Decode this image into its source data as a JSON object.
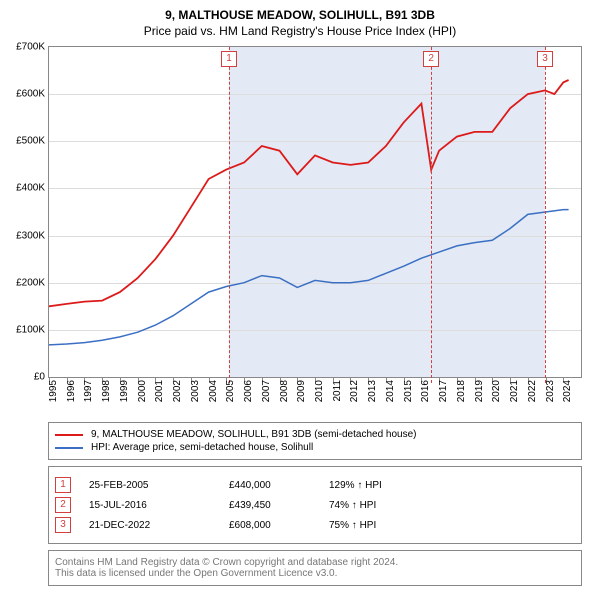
{
  "title": "9, MALTHOUSE MEADOW, SOLIHULL, B91 3DB",
  "subtitle": "Price paid vs. HM Land Registry's House Price Index (HPI)",
  "chart": {
    "type": "line",
    "background_color": "#ffffff",
    "shaded_band_color": "#e3eaf5",
    "grid_color": "#dcdcdc",
    "border_color": "#888888",
    "x": {
      "min": 1995,
      "max": 2025,
      "ticks": [
        1995,
        1996,
        1997,
        1998,
        1999,
        2000,
        2001,
        2002,
        2003,
        2004,
        2005,
        2006,
        2007,
        2008,
        2009,
        2010,
        2011,
        2012,
        2013,
        2014,
        2015,
        2016,
        2017,
        2018,
        2019,
        2020,
        2021,
        2022,
        2023,
        2024
      ]
    },
    "y": {
      "min": 0,
      "max": 700000,
      "ticks": [
        0,
        100000,
        200000,
        300000,
        400000,
        500000,
        600000,
        700000
      ],
      "labels": [
        "£0",
        "£100K",
        "£200K",
        "£300K",
        "£400K",
        "£500K",
        "£600K",
        "£700K"
      ]
    },
    "shaded_band": {
      "x_start": 2005.15,
      "x_end": 2022.97
    },
    "series": [
      {
        "name": "property",
        "label": "9, MALTHOUSE MEADOW, SOLIHULL, B91 3DB (semi-detached house)",
        "color": "#dd1a1a",
        "width": 1.8,
        "points": [
          [
            1995,
            150000
          ],
          [
            1996,
            155000
          ],
          [
            1997,
            160000
          ],
          [
            1998,
            162000
          ],
          [
            1999,
            180000
          ],
          [
            2000,
            210000
          ],
          [
            2001,
            250000
          ],
          [
            2002,
            300000
          ],
          [
            2003,
            360000
          ],
          [
            2004,
            420000
          ],
          [
            2005,
            440000
          ],
          [
            2006,
            455000
          ],
          [
            2007,
            490000
          ],
          [
            2008,
            480000
          ],
          [
            2009,
            430000
          ],
          [
            2010,
            470000
          ],
          [
            2011,
            455000
          ],
          [
            2012,
            450000
          ],
          [
            2013,
            455000
          ],
          [
            2014,
            490000
          ],
          [
            2015,
            540000
          ],
          [
            2016,
            580000
          ],
          [
            2016.55,
            439450
          ],
          [
            2017,
            480000
          ],
          [
            2018,
            510000
          ],
          [
            2019,
            520000
          ],
          [
            2020,
            520000
          ],
          [
            2021,
            570000
          ],
          [
            2022,
            600000
          ],
          [
            2022.97,
            608000
          ],
          [
            2023.5,
            600000
          ],
          [
            2024,
            625000
          ],
          [
            2024.3,
            630000
          ]
        ]
      },
      {
        "name": "hpi",
        "label": "HPI: Average price, semi-detached house, Solihull",
        "color": "#3b6fc4",
        "width": 1.5,
        "points": [
          [
            1995,
            68000
          ],
          [
            1996,
            70000
          ],
          [
            1997,
            73000
          ],
          [
            1998,
            78000
          ],
          [
            1999,
            85000
          ],
          [
            2000,
            95000
          ],
          [
            2001,
            110000
          ],
          [
            2002,
            130000
          ],
          [
            2003,
            155000
          ],
          [
            2004,
            180000
          ],
          [
            2005,
            192000
          ],
          [
            2006,
            200000
          ],
          [
            2007,
            215000
          ],
          [
            2008,
            210000
          ],
          [
            2009,
            190000
          ],
          [
            2010,
            205000
          ],
          [
            2011,
            200000
          ],
          [
            2012,
            200000
          ],
          [
            2013,
            205000
          ],
          [
            2014,
            220000
          ],
          [
            2015,
            235000
          ],
          [
            2016,
            252000
          ],
          [
            2017,
            265000
          ],
          [
            2018,
            278000
          ],
          [
            2019,
            285000
          ],
          [
            2020,
            290000
          ],
          [
            2021,
            315000
          ],
          [
            2022,
            345000
          ],
          [
            2023,
            350000
          ],
          [
            2024,
            355000
          ],
          [
            2024.3,
            355000
          ]
        ]
      }
    ],
    "event_lines": [
      {
        "n": "1",
        "x": 2005.15
      },
      {
        "n": "2",
        "x": 2016.55
      },
      {
        "n": "3",
        "x": 2022.97
      }
    ]
  },
  "legend": {
    "items": [
      {
        "color": "#dd1a1a",
        "label": "9, MALTHOUSE MEADOW, SOLIHULL, B91 3DB (semi-detached house)"
      },
      {
        "color": "#3b6fc4",
        "label": "HPI: Average price, semi-detached house, Solihull"
      }
    ]
  },
  "transactions": {
    "accent_color": "#d04040",
    "suffix": "HPI",
    "rows": [
      {
        "n": "1",
        "date": "25-FEB-2005",
        "price": "£440,000",
        "delta": "129% ↑"
      },
      {
        "n": "2",
        "date": "15-JUL-2016",
        "price": "£439,450",
        "delta": "74% ↑"
      },
      {
        "n": "3",
        "date": "21-DEC-2022",
        "price": "£608,000",
        "delta": "75% ↑"
      }
    ]
  },
  "footnote": {
    "line1": "Contains HM Land Registry data © Crown copyright and database right 2024.",
    "line2": "This data is licensed under the Open Government Licence v3.0."
  }
}
